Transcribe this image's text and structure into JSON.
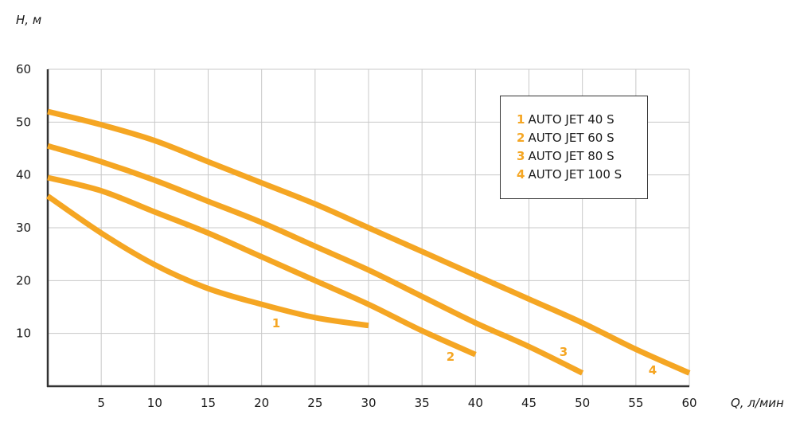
{
  "chart_data": {
    "type": "line",
    "ylabel": "H, м",
    "xlabel": "Q, л/мин",
    "xlim": [
      0,
      60
    ],
    "ylim": [
      0,
      60
    ],
    "x_ticks": [
      5,
      10,
      15,
      20,
      25,
      30,
      35,
      40,
      45,
      50,
      55,
      60
    ],
    "y_ticks": [
      10,
      20,
      30,
      40,
      50,
      60
    ],
    "grid": true,
    "legend_position": "top-right",
    "line_color": "#f5a623",
    "series": [
      {
        "name": "AUTO JET 40 S",
        "label": "1",
        "x": [
          0,
          5,
          10,
          15,
          20,
          25,
          30
        ],
        "y": [
          36,
          29,
          23,
          18.5,
          15.5,
          13,
          11.5
        ]
      },
      {
        "name": "AUTO JET 60 S",
        "label": "2",
        "x": [
          0,
          5,
          10,
          15,
          20,
          25,
          30,
          35,
          40
        ],
        "y": [
          39.5,
          37,
          33,
          29,
          24.5,
          20,
          15.5,
          10.5,
          6
        ]
      },
      {
        "name": "AUTO JET 80 S",
        "label": "3",
        "x": [
          0,
          5,
          10,
          15,
          20,
          25,
          30,
          35,
          40,
          45,
          50
        ],
        "y": [
          45.5,
          42.5,
          39,
          35,
          31,
          26.5,
          22,
          17,
          12,
          7.5,
          2.5
        ]
      },
      {
        "name": "AUTO JET 100 S",
        "label": "4",
        "x": [
          0,
          5,
          10,
          15,
          20,
          25,
          30,
          35,
          40,
          45,
          50,
          55,
          60
        ],
        "y": [
          52,
          49.5,
          46.5,
          42.5,
          38.5,
          34.5,
          30,
          25.5,
          21,
          16.5,
          12,
          7,
          2.5
        ]
      }
    ]
  }
}
